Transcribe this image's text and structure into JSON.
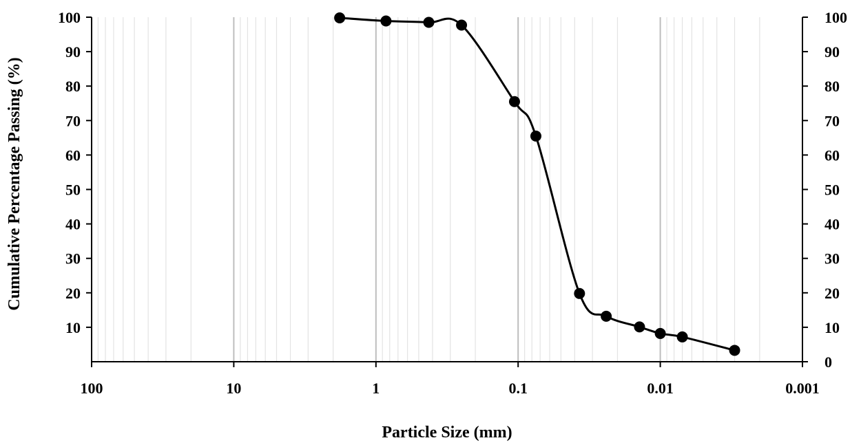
{
  "chart_data": {
    "type": "scatter",
    "title": "",
    "xlabel": "Particle Size (mm)",
    "ylabel": "Cumulative Percentage Passing (%)",
    "x_scale": "log",
    "x_reversed": true,
    "xlim": [
      100,
      0.001
    ],
    "ylim_left": [
      0,
      100
    ],
    "ylim_right": [
      0,
      100
    ],
    "x_ticks": [
      100,
      10,
      1,
      0.1,
      0.01,
      0.001
    ],
    "x_tick_labels": [
      "100",
      "10",
      "1",
      "0.1",
      "0.01",
      "0.001"
    ],
    "y_left_ticks": [
      10,
      20,
      30,
      40,
      50,
      60,
      70,
      80,
      90,
      100
    ],
    "y_left_tick_labels": [
      "10",
      "20",
      "30",
      "40",
      "50",
      "60",
      "70",
      "80",
      "90",
      "100"
    ],
    "y_right_ticks": [
      0,
      10,
      20,
      30,
      40,
      50,
      60,
      70,
      80,
      90,
      100
    ],
    "y_right_tick_labels": [
      "0",
      "10",
      "20",
      "30",
      "40",
      "50",
      "60",
      "70",
      "80",
      "90",
      "100"
    ],
    "grid": "vertical minor log gridlines",
    "series": [
      {
        "x": [
          1.8,
          0.85,
          0.425,
          0.25,
          0.106,
          0.075,
          0.037,
          0.024,
          0.014,
          0.01,
          0.007,
          0.003
        ],
        "y": [
          99.8,
          98.9,
          98.5,
          97.7,
          75.5,
          65.5,
          19.8,
          13.2,
          10.1,
          8.2,
          7.2,
          3.3
        ]
      }
    ]
  },
  "colors": {
    "line": "#000000",
    "marker": "#000000",
    "grid_major": "#bdbdbd",
    "grid_minor": "#e3e3e3"
  }
}
